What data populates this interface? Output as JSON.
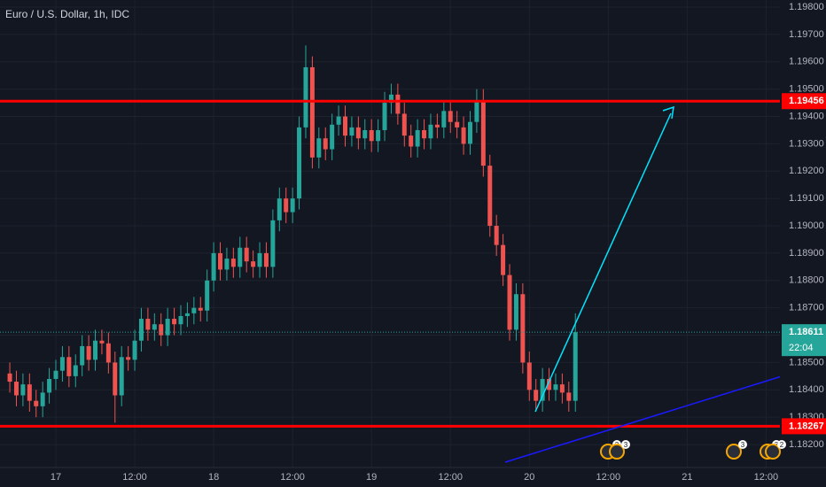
{
  "chart_data": {
    "type": "candlestick",
    "title": "Euro / U.S. Dollar, 1h, IDC",
    "x": [
      -7,
      -6,
      -5,
      -4,
      -3,
      -2,
      -1,
      0,
      1,
      2,
      3,
      4,
      5,
      6,
      7,
      8,
      9,
      10,
      11,
      12,
      13,
      14,
      15,
      16,
      17,
      18,
      19,
      20,
      21,
      22,
      23,
      24,
      25,
      26,
      27,
      28,
      29,
      30,
      31,
      32,
      33,
      34,
      35,
      36,
      37,
      38,
      39,
      40,
      41,
      42,
      43,
      44,
      45,
      46,
      47,
      48,
      49,
      50,
      51,
      52,
      53,
      54,
      55,
      56,
      57,
      58,
      59,
      60,
      61,
      62,
      63,
      64,
      65,
      66,
      67,
      68,
      69,
      70,
      71,
      72,
      73,
      74,
      75,
      76,
      77,
      78,
      79
    ],
    "open": [
      1.1846,
      1.1843,
      1.1838,
      1.1842,
      1.1836,
      1.1834,
      1.1839,
      1.1844,
      1.1847,
      1.1852,
      1.1845,
      1.1849,
      1.1856,
      1.1851,
      1.1858,
      1.1857,
      1.185,
      1.1838,
      1.1852,
      1.1851,
      1.1858,
      1.1866,
      1.1862,
      1.1864,
      1.186,
      1.1866,
      1.1864,
      1.1867,
      1.1868,
      1.187,
      1.1869,
      1.188,
      1.189,
      1.1884,
      1.1888,
      1.1885,
      1.1892,
      1.1887,
      1.1885,
      1.189,
      1.1885,
      1.1902,
      1.191,
      1.1905,
      1.191,
      1.1936,
      1.1958,
      1.1925,
      1.1932,
      1.1928,
      1.1937,
      1.194,
      1.1933,
      1.1936,
      1.1932,
      1.1935,
      1.1931,
      1.1935,
      1.1945,
      1.1948,
      1.1941,
      1.1933,
      1.1929,
      1.1935,
      1.1932,
      1.1937,
      1.1936,
      1.1942,
      1.1938,
      1.1936,
      1.193,
      1.1938,
      1.1946,
      1.1922,
      1.19,
      1.1893,
      1.1882,
      1.1862,
      1.1875,
      1.185,
      1.184,
      1.1836,
      1.1844,
      1.184,
      1.1842,
      1.1839,
      1.1836
    ],
    "high": [
      1.185,
      1.1847,
      1.1846,
      1.1846,
      1.184,
      1.1843,
      1.1848,
      1.1851,
      1.1856,
      1.1856,
      1.1853,
      1.186,
      1.186,
      1.1862,
      1.1862,
      1.1861,
      1.1854,
      1.1856,
      1.1856,
      1.1862,
      1.187,
      1.187,
      1.1868,
      1.1868,
      1.187,
      1.187,
      1.1871,
      1.1872,
      1.1874,
      1.1874,
      1.1884,
      1.1894,
      1.1894,
      1.1892,
      1.1892,
      1.1896,
      1.1896,
      1.1891,
      1.1894,
      1.1894,
      1.1906,
      1.1914,
      1.1914,
      1.1914,
      1.194,
      1.1966,
      1.1962,
      1.1936,
      1.1936,
      1.1941,
      1.1944,
      1.1944,
      1.194,
      1.194,
      1.1939,
      1.1939,
      1.1939,
      1.1949,
      1.1952,
      1.1952,
      1.1945,
      1.1937,
      1.1939,
      1.1939,
      1.1941,
      1.1941,
      1.1946,
      1.1946,
      1.1942,
      1.194,
      1.1942,
      1.195,
      1.195,
      1.1926,
      1.1904,
      1.1897,
      1.1886,
      1.1879,
      1.1879,
      1.1854,
      1.1844,
      1.1848,
      1.1848,
      1.1846,
      1.1846,
      1.1843,
      1.1868
    ],
    "low": [
      1.1839,
      1.1834,
      1.1834,
      1.1832,
      1.183,
      1.183,
      1.1835,
      1.184,
      1.1843,
      1.1841,
      1.1841,
      1.1845,
      1.1847,
      1.1847,
      1.1853,
      1.1846,
      1.1828,
      1.1834,
      1.1847,
      1.1847,
      1.1854,
      1.1858,
      1.1858,
      1.1856,
      1.1856,
      1.186,
      1.186,
      1.1863,
      1.1864,
      1.1865,
      1.1865,
      1.1876,
      1.188,
      1.188,
      1.1881,
      1.1881,
      1.1883,
      1.1881,
      1.1881,
      1.1881,
      1.1881,
      1.1898,
      1.1901,
      1.1901,
      1.1906,
      1.1932,
      1.1921,
      1.1921,
      1.1924,
      1.1924,
      1.1933,
      1.1929,
      1.1929,
      1.1928,
      1.1928,
      1.1927,
      1.1927,
      1.1931,
      1.1941,
      1.1937,
      1.1929,
      1.1925,
      1.1925,
      1.1928,
      1.1928,
      1.1932,
      1.1932,
      1.1934,
      1.1932,
      1.1926,
      1.1926,
      1.1934,
      1.1918,
      1.1896,
      1.1889,
      1.1878,
      1.1858,
      1.1858,
      1.1846,
      1.1836,
      1.1832,
      1.1832,
      1.1836,
      1.1836,
      1.1835,
      1.1832,
      1.1832
    ],
    "close": [
      1.1843,
      1.1838,
      1.1842,
      1.1836,
      1.1834,
      1.1839,
      1.1844,
      1.1847,
      1.1852,
      1.1845,
      1.1849,
      1.1856,
      1.1851,
      1.1858,
      1.1857,
      1.185,
      1.1838,
      1.1852,
      1.1851,
      1.1858,
      1.1866,
      1.1862,
      1.1864,
      1.186,
      1.1866,
      1.1864,
      1.1867,
      1.1868,
      1.187,
      1.1869,
      1.188,
      1.189,
      1.1884,
      1.1888,
      1.1885,
      1.1892,
      1.1887,
      1.1885,
      1.189,
      1.1885,
      1.1902,
      1.191,
      1.1905,
      1.191,
      1.1936,
      1.1958,
      1.1925,
      1.1932,
      1.1928,
      1.1937,
      1.194,
      1.1933,
      1.1936,
      1.1932,
      1.1935,
      1.1931,
      1.1935,
      1.1945,
      1.1948,
      1.1941,
      1.1933,
      1.1929,
      1.1935,
      1.1932,
      1.1937,
      1.1936,
      1.1942,
      1.1938,
      1.1936,
      1.193,
      1.1938,
      1.1946,
      1.1922,
      1.19,
      1.1893,
      1.1882,
      1.1862,
      1.1875,
      1.185,
      1.184,
      1.1836,
      1.1844,
      1.184,
      1.1842,
      1.1839,
      1.1836,
      1.18611
    ],
    "up_color": "#26a69a",
    "down_color": "#ef5350",
    "xlim": [
      -8.49,
      110.1
    ],
    "xticks": [
      {
        "value": 0,
        "label": "17"
      },
      {
        "value": 12,
        "label": "12:00"
      },
      {
        "value": 24,
        "label": "18"
      },
      {
        "value": 36,
        "label": "12:00"
      },
      {
        "value": 48,
        "label": "19"
      },
      {
        "value": 60,
        "label": "12:00"
      },
      {
        "value": 72,
        "label": "20"
      },
      {
        "value": 84,
        "label": "12:00"
      },
      {
        "value": 96,
        "label": "21"
      },
      {
        "value": 108,
        "label": "12:00"
      }
    ],
    "ylim": [
      1.18116,
      1.19826
    ],
    "yticks": [
      {
        "value": 1.182,
        "label": "1.18200"
      },
      {
        "value": 1.183,
        "label": "1.18300"
      },
      {
        "value": 1.184,
        "label": "1.18400"
      },
      {
        "value": 1.185,
        "label": "1.18500"
      },
      {
        "value": 1.186,
        "label": "1.18600"
      },
      {
        "value": 1.187,
        "label": "1.18700"
      },
      {
        "value": 1.188,
        "label": "1.18800"
      },
      {
        "value": 1.189,
        "label": "1.18900"
      },
      {
        "value": 1.19,
        "label": "1.19000"
      },
      {
        "value": 1.191,
        "label": "1.19100"
      },
      {
        "value": 1.192,
        "label": "1.19200"
      },
      {
        "value": 1.193,
        "label": "1.19300"
      },
      {
        "value": 1.194,
        "label": "1.19400"
      },
      {
        "value": 1.195,
        "label": "1.19500"
      },
      {
        "value": 1.196,
        "label": "1.19600"
      },
      {
        "value": 1.197,
        "label": "1.19700"
      },
      {
        "value": 1.198,
        "label": "1.19800"
      }
    ],
    "grid": true,
    "levels": [
      {
        "value": 1.19456,
        "color": "#ff0000"
      },
      {
        "value": 1.18267,
        "color": "#ff0000"
      }
    ],
    "last_price": {
      "value": 1.18611,
      "color": "#26a69a",
      "countdown": "22:04"
    },
    "event_badges": [
      "3",
      "3",
      "3",
      "3",
      "2"
    ]
  }
}
